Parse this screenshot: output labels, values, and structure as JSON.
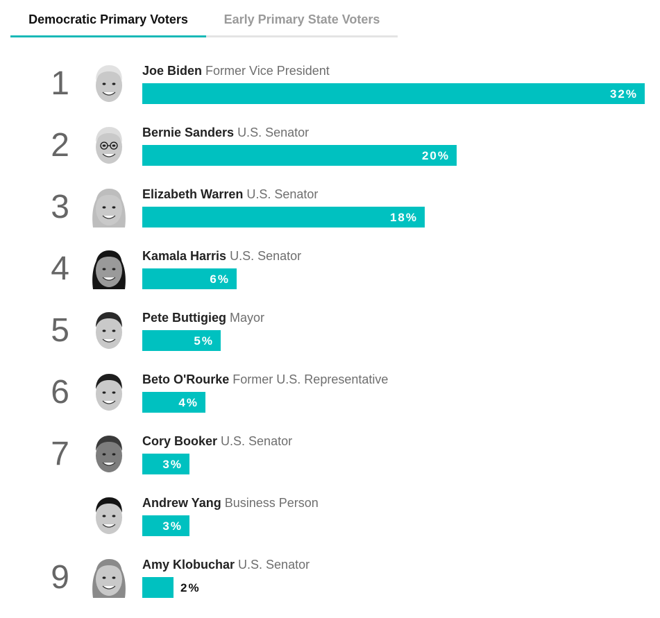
{
  "tabs": [
    {
      "label": "Democratic Primary Voters",
      "active": true
    },
    {
      "label": "Early Primary State Voters",
      "active": false
    }
  ],
  "colors": {
    "accent": "#19b9b7",
    "bar": "#00c1c0"
  },
  "chart_data": {
    "type": "bar",
    "orientation": "horizontal",
    "xlim": [
      0,
      32
    ],
    "value_suffix": "%",
    "categories": [
      "Joe Biden",
      "Bernie Sanders",
      "Elizabeth Warren",
      "Kamala Harris",
      "Pete Buttigieg",
      "Beto O'Rourke",
      "Cory Booker",
      "Andrew Yang",
      "Amy Klobuchar"
    ],
    "values": [
      32,
      20,
      18,
      6,
      5,
      4,
      3,
      3,
      2
    ],
    "rows": [
      {
        "rank": "1",
        "name": "Joe Biden",
        "title": "Former Vice President",
        "value": 32,
        "label": "32%",
        "portrait": "joe-biden-portrait"
      },
      {
        "rank": "2",
        "name": "Bernie Sanders",
        "title": "U.S. Senator",
        "value": 20,
        "label": "20%",
        "portrait": "bernie-sanders-portrait"
      },
      {
        "rank": "3",
        "name": "Elizabeth Warren",
        "title": "U.S. Senator",
        "value": 18,
        "label": "18%",
        "portrait": "elizabeth-warren-portrait"
      },
      {
        "rank": "4",
        "name": "Kamala Harris",
        "title": "U.S. Senator",
        "value": 6,
        "label": "6%",
        "portrait": "kamala-harris-portrait"
      },
      {
        "rank": "5",
        "name": "Pete Buttigieg",
        "title": "Mayor",
        "value": 5,
        "label": "5%",
        "portrait": "pete-buttigieg-portrait"
      },
      {
        "rank": "6",
        "name": "Beto O'Rourke",
        "title": "Former U.S. Representative",
        "value": 4,
        "label": "4%",
        "portrait": "beto-orourke-portrait"
      },
      {
        "rank": "7",
        "name": "Cory Booker",
        "title": "U.S. Senator",
        "value": 3,
        "label": "3%",
        "portrait": "cory-booker-portrait"
      },
      {
        "rank": "",
        "name": "Andrew Yang",
        "title": "Business Person",
        "value": 3,
        "label": "3%",
        "portrait": "andrew-yang-portrait"
      },
      {
        "rank": "9",
        "name": "Amy Klobuchar",
        "title": "U.S. Senator",
        "value": 2,
        "label": "2%",
        "portrait": "amy-klobuchar-portrait"
      }
    ]
  }
}
